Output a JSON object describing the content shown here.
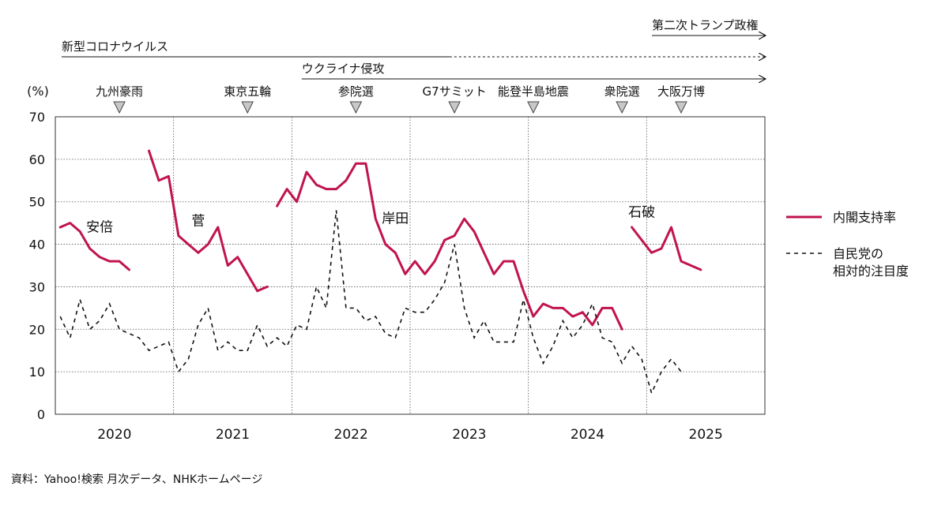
{
  "chart_data": {
    "type": "line",
    "y_unit": "(%)",
    "ylim": [
      0,
      70
    ],
    "yticks": [
      0,
      10,
      20,
      30,
      40,
      50,
      60,
      70
    ],
    "x_range": [
      "2020-01",
      "2025-12"
    ],
    "year_labels": [
      "2020",
      "2021",
      "2022",
      "2023",
      "2024",
      "2025"
    ],
    "grid": true,
    "legend_position": "right",
    "series": [
      {
        "name": "内閣支持率",
        "color": "#c0144c",
        "style": "solid",
        "segments": [
          {
            "label": "安倍",
            "points": [
              [
                "2020-01",
                44
              ],
              [
                "2020-02",
                45
              ],
              [
                "2020-03",
                43
              ],
              [
                "2020-04",
                39
              ],
              [
                "2020-05",
                37
              ],
              [
                "2020-06",
                36
              ],
              [
                "2020-07",
                36
              ],
              [
                "2020-08",
                34
              ]
            ]
          },
          {
            "label": "菅",
            "points": [
              [
                "2020-10",
                62
              ],
              [
                "2020-11",
                55
              ],
              [
                "2020-12",
                56
              ],
              [
                "2021-01",
                42
              ],
              [
                "2021-02",
                40
              ],
              [
                "2021-03",
                38
              ],
              [
                "2021-04",
                40
              ],
              [
                "2021-05",
                44
              ],
              [
                "2021-06",
                35
              ],
              [
                "2021-07",
                37
              ],
              [
                "2021-08",
                33
              ],
              [
                "2021-09",
                29
              ],
              [
                "2021-10",
                30
              ]
            ]
          },
          {
            "label": "岸田",
            "points": [
              [
                "2021-11",
                49
              ],
              [
                "2021-12",
                53
              ],
              [
                "2022-01",
                50
              ],
              [
                "2022-02",
                57
              ],
              [
                "2022-03",
                54
              ],
              [
                "2022-04",
                53
              ],
              [
                "2022-05",
                53
              ],
              [
                "2022-06",
                55
              ],
              [
                "2022-07",
                59
              ],
              [
                "2022-08",
                59
              ],
              [
                "2022-09",
                46
              ],
              [
                "2022-10",
                40
              ],
              [
                "2022-11",
                38
              ],
              [
                "2022-12",
                33
              ],
              [
                "2023-01",
                36
              ],
              [
                "2023-02",
                33
              ],
              [
                "2023-03",
                36
              ],
              [
                "2023-04",
                41
              ],
              [
                "2023-05",
                42
              ],
              [
                "2023-06",
                46
              ],
              [
                "2023-07",
                43
              ],
              [
                "2023-08",
                38
              ],
              [
                "2023-09",
                33
              ],
              [
                "2023-10",
                36
              ],
              [
                "2023-11",
                36
              ],
              [
                "2023-12",
                29
              ],
              [
                "2024-01",
                23
              ],
              [
                "2024-02",
                26
              ],
              [
                "2024-03",
                25
              ],
              [
                "2024-04",
                25
              ],
              [
                "2024-05",
                23
              ],
              [
                "2024-06",
                24
              ],
              [
                "2024-07",
                21
              ],
              [
                "2024-08",
                25
              ],
              [
                "2024-09",
                25
              ],
              [
                "2024-10",
                20
              ]
            ]
          },
          {
            "label": "石破",
            "points": [
              [
                "2024-11",
                44
              ],
              [
                "2024-12",
                41
              ],
              [
                "2025-01",
                38
              ],
              [
                "2025-02",
                39
              ],
              [
                "2025-03",
                44
              ],
              [
                "2025-04",
                36
              ],
              [
                "2025-05",
                35
              ],
              [
                "2025-06",
                34
              ]
            ]
          }
        ]
      },
      {
        "name": "自民党の相対的注目度",
        "color": "#111111",
        "style": "dashed",
        "points": [
          [
            "2020-01",
            23
          ],
          [
            "2020-02",
            18
          ],
          [
            "2020-03",
            27
          ],
          [
            "2020-04",
            20
          ],
          [
            "2020-05",
            22
          ],
          [
            "2020-06",
            26
          ],
          [
            "2020-07",
            20
          ],
          [
            "2020-08",
            19
          ],
          [
            "2020-09",
            18
          ],
          [
            "2020-10",
            15
          ],
          [
            "2020-11",
            16
          ],
          [
            "2020-12",
            17
          ],
          [
            "2021-01",
            10
          ],
          [
            "2021-02",
            13
          ],
          [
            "2021-03",
            21
          ],
          [
            "2021-04",
            25
          ],
          [
            "2021-05",
            15
          ],
          [
            "2021-06",
            17
          ],
          [
            "2021-07",
            15
          ],
          [
            "2021-08",
            15
          ],
          [
            "2021-09",
            21
          ],
          [
            "2021-10",
            16
          ],
          [
            "2021-11",
            18
          ],
          [
            "2021-12",
            16
          ],
          [
            "2022-01",
            21
          ],
          [
            "2022-02",
            20
          ],
          [
            "2022-03",
            30
          ],
          [
            "2022-04",
            25
          ],
          [
            "2022-05",
            48
          ],
          [
            "2022-06",
            25
          ],
          [
            "2022-07",
            25
          ],
          [
            "2022-08",
            22
          ],
          [
            "2022-09",
            23
          ],
          [
            "2022-10",
            19
          ],
          [
            "2022-11",
            18
          ],
          [
            "2022-12",
            25
          ],
          [
            "2023-01",
            24
          ],
          [
            "2023-02",
            24
          ],
          [
            "2023-03",
            27
          ],
          [
            "2023-04",
            31
          ],
          [
            "2023-05",
            40
          ],
          [
            "2023-06",
            25
          ],
          [
            "2023-07",
            18
          ],
          [
            "2023-08",
            22
          ],
          [
            "2023-09",
            17
          ],
          [
            "2023-10",
            17
          ],
          [
            "2023-11",
            17
          ],
          [
            "2023-12",
            27
          ],
          [
            "2024-01",
            18
          ],
          [
            "2024-02",
            12
          ],
          [
            "2024-03",
            16
          ],
          [
            "2024-04",
            22
          ],
          [
            "2024-05",
            18
          ],
          [
            "2024-06",
            21
          ],
          [
            "2024-07",
            26
          ],
          [
            "2024-08",
            18
          ],
          [
            "2024-09",
            17
          ],
          [
            "2024-10",
            12
          ],
          [
            "2024-11",
            16
          ],
          [
            "2024-12",
            13
          ],
          [
            "2025-01",
            5
          ],
          [
            "2025-02",
            10
          ],
          [
            "2025-03",
            13
          ],
          [
            "2025-04",
            10
          ]
        ]
      }
    ],
    "annotations": [
      {
        "text": "九州豪雨",
        "date": "2020-07"
      },
      {
        "text": "東京五輪",
        "date": "2021-08"
      },
      {
        "text": "参院選",
        "date": "2022-07"
      },
      {
        "text": "G7サミット",
        "date": "2023-05"
      },
      {
        "text": "能登半島地震",
        "date": "2024-01"
      },
      {
        "text": "衆院選",
        "date": "2024-10"
      },
      {
        "text": "大阪万博",
        "date": "2025-04"
      }
    ],
    "periods": [
      {
        "text": "新型コロナウイルス",
        "start": "2020-01",
        "solid_end": "2023-05",
        "end": "2025-12"
      },
      {
        "text": "ウクライナ侵攻",
        "start": "2022-02",
        "end": "2025-12"
      },
      {
        "text": "第二次トランプ政権",
        "start": "2025-01",
        "end": "2025-12"
      }
    ]
  },
  "source_note": "資料：Yahoo!検索 月次データ、NHKホームページ"
}
